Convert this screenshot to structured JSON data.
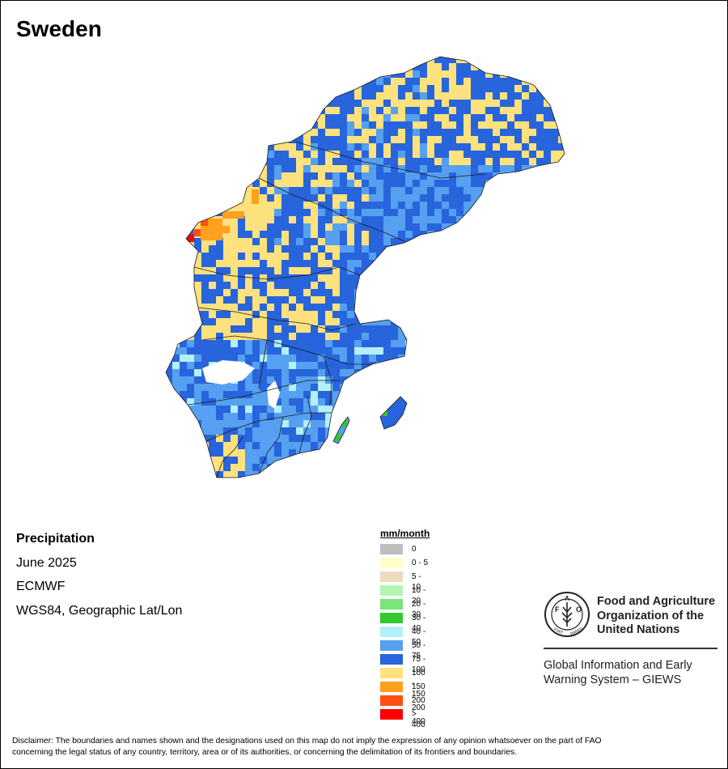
{
  "title": "Sweden",
  "info": {
    "variable": "Precipitation",
    "period": "June 2025",
    "source": "ECMWF",
    "projection": "WGS84, Geographic Lat/Lon"
  },
  "legend": {
    "title": "mm/month",
    "items": [
      {
        "label": "0",
        "color": "#bebebe"
      },
      {
        "label": "0 - 5",
        "color": "#ffffc8"
      },
      {
        "label": "5 - 10",
        "color": "#ecdcbf"
      },
      {
        "label": "10 - 20",
        "color": "#b4f5b4"
      },
      {
        "label": "20 - 30",
        "color": "#78e678"
      },
      {
        "label": "30 - 40",
        "color": "#32c832"
      },
      {
        "label": "40 - 50",
        "color": "#b4f0fa"
      },
      {
        "label": "50 - 75",
        "color": "#55a0f0"
      },
      {
        "label": "75 - 100",
        "color": "#2864dc"
      },
      {
        "label": "100 - 150",
        "color": "#ffe17d"
      },
      {
        "label": "150 - 200",
        "color": "#ffa01e"
      },
      {
        "label": "200 - 400",
        "color": "#ff5014"
      },
      {
        "label": "> 400",
        "color": "#ff0000"
      }
    ]
  },
  "fao": {
    "org_line1": "Food and Agriculture",
    "org_line2": "Organization of the",
    "org_line3": "United Nations",
    "giews_line1": "Global Information and Early",
    "giews_line2": "Warning System – GIEWS",
    "logo_letters": "FAO",
    "logo_motto": "FIAT PANIS"
  },
  "disclaimer": {
    "line1": "Disclaimer: The boundaries and names shown and the designations used on this map do not imply the expression of any opinion whatsoever on the part of FAO",
    "line2": "concerning the legal status of any country, territory, area or of its authorities, or concerning the delimitation of its frontiers and boundaries."
  }
}
